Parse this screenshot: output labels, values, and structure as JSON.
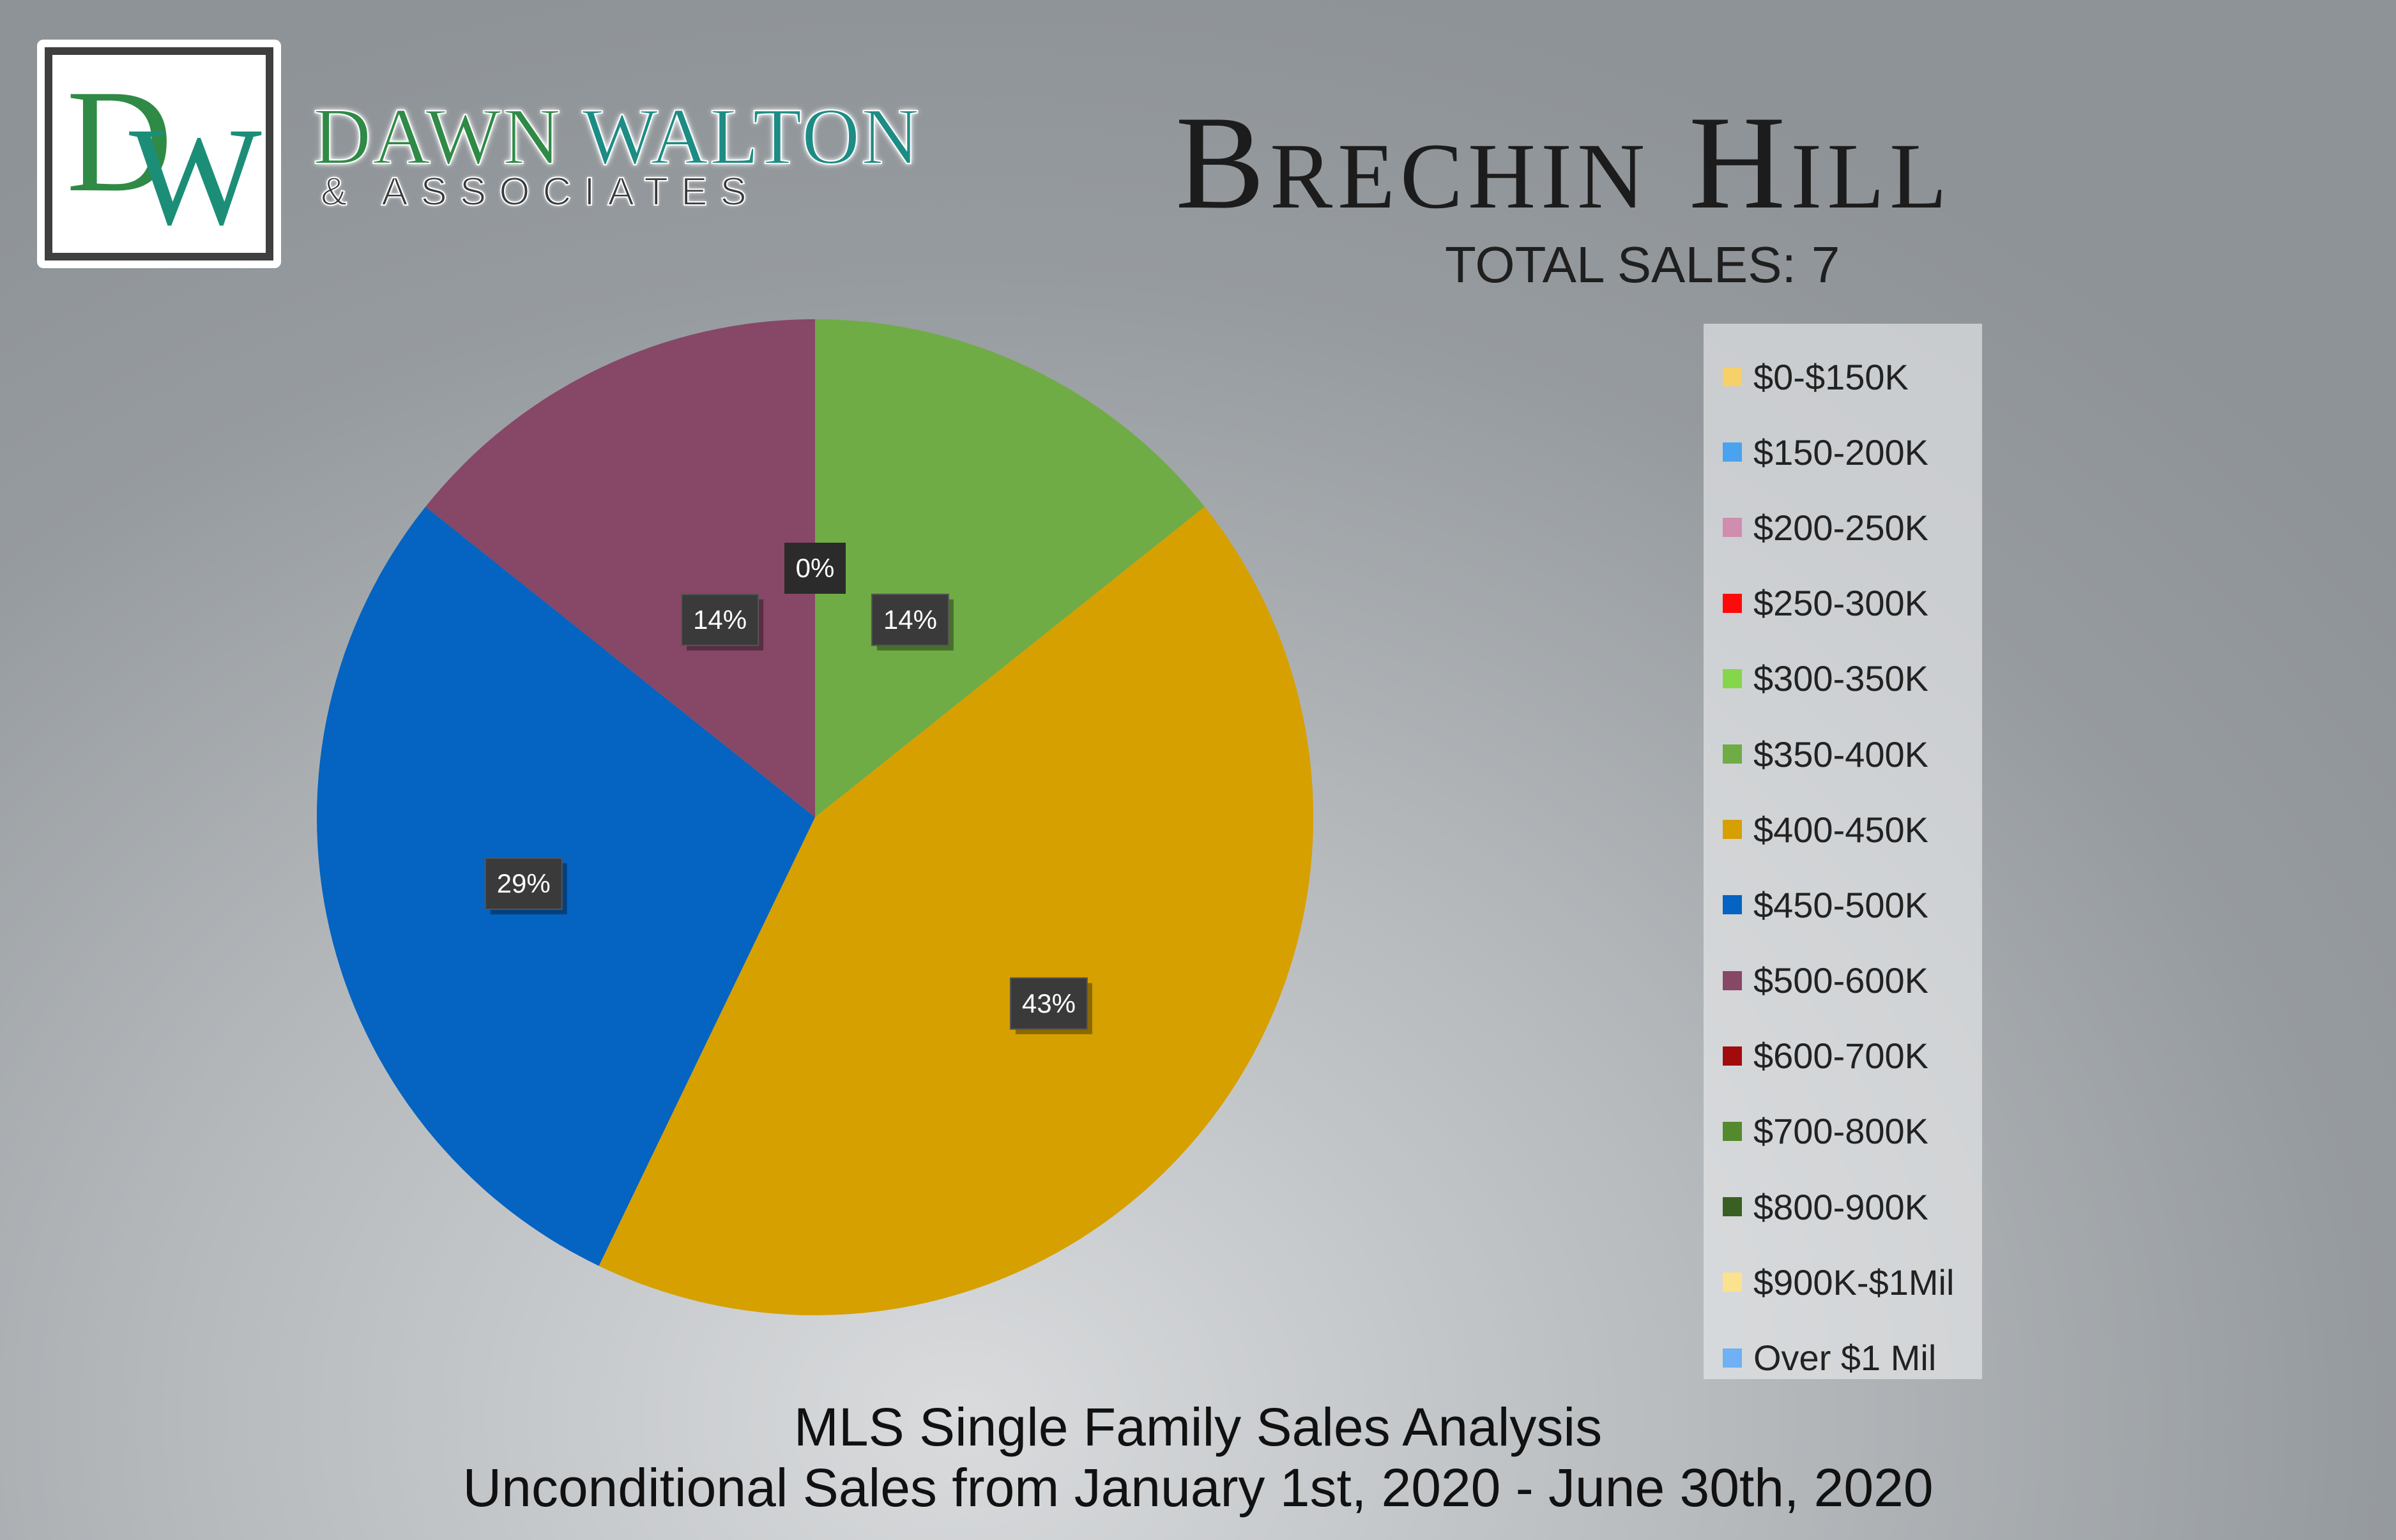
{
  "brand": {
    "monogram_d": "D",
    "monogram_w": "W",
    "name_dawn": "DAWN",
    "name_walton": "WALTON",
    "subtitle": "& ASSOCIATES",
    "colors": {
      "green": "#2f8a46",
      "teal": "#1d8c84"
    }
  },
  "header": {
    "title": "Brechin Hill",
    "total_sales_label": "TOTAL SALES:",
    "total_sales_value": "7"
  },
  "chart_data": {
    "type": "pie",
    "title": "Brechin Hill",
    "total": 7,
    "legend_position": "right",
    "slices": [
      {
        "label": "$0-$150K",
        "value": 0,
        "percent": "",
        "color": "#f6d068"
      },
      {
        "label": "$150-200K",
        "value": 0,
        "percent": "",
        "color": "#4aa3ef"
      },
      {
        "label": "$200-250K",
        "value": 0,
        "percent": "",
        "color": "#cf8db0"
      },
      {
        "label": "$250-300K",
        "value": 0,
        "percent": "",
        "color": "#ff0a0a"
      },
      {
        "label": "$300-350K",
        "value": 0,
        "percent": "",
        "color": "#86d64b"
      },
      {
        "label": "$350-400K",
        "value": 1,
        "percent": "14%",
        "color": "#6fac46"
      },
      {
        "label": "$400-450K",
        "value": 3,
        "percent": "43%",
        "color": "#d6a000"
      },
      {
        "label": "$450-500K",
        "value": 2,
        "percent": "29%",
        "color": "#0563c1"
      },
      {
        "label": "$500-600K",
        "value": 1,
        "percent": "14%",
        "color": "#874766"
      },
      {
        "label": "$600-700K",
        "value": 0,
        "percent": "",
        "color": "#a10b0b"
      },
      {
        "label": "$700-800K",
        "value": 0,
        "percent": "",
        "color": "#548a2e"
      },
      {
        "label": "$800-900K",
        "value": 0,
        "percent": "",
        "color": "#3a5f22"
      },
      {
        "label": "$900K-$1Mil",
        "value": 0,
        "percent": "",
        "color": "#fbe28c"
      },
      {
        "label": "Over $1 Mil",
        "value": 0,
        "percent": "0%",
        "color": "#70b0f4"
      }
    ]
  },
  "footer": {
    "line1": "MLS Single Family Sales Analysis",
    "line2": "Unconditional Sales from January 1st, 2020 - June 30th, 2020"
  }
}
